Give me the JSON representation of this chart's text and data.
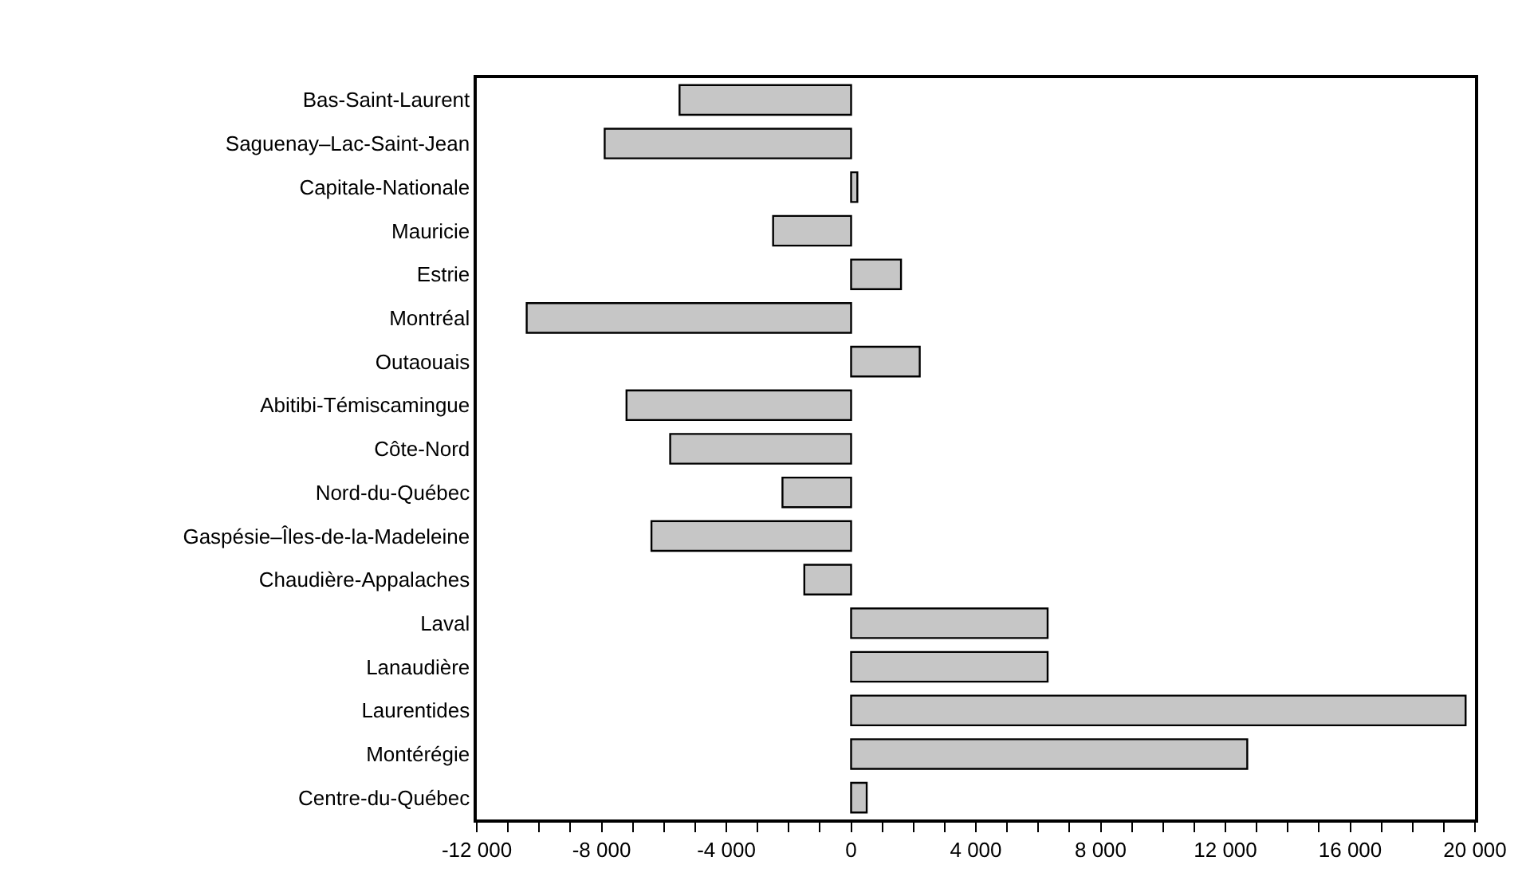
{
  "chart_data": {
    "type": "bar",
    "orientation": "horizontal",
    "categories": [
      "Bas-Saint-Laurent",
      "Saguenay–Lac-Saint-Jean",
      "Capitale-Nationale",
      "Mauricie",
      "Estrie",
      "Montréal",
      "Outaouais",
      "Abitibi-Témiscamingue",
      "Côte-Nord",
      "Nord-du-Québec",
      "Gaspésie–Îles-de-la-Madeleine",
      "Chaudière-Appalaches",
      "Laval",
      "Lanaudière",
      "Laurentides",
      "Montérégie",
      "Centre-du-Québec"
    ],
    "values": [
      -5500,
      -7900,
      200,
      -2500,
      1600,
      -10400,
      2200,
      -7200,
      -5800,
      -2200,
      -6400,
      -1500,
      6300,
      6300,
      19700,
      12700,
      500
    ],
    "color": "#c6c6c6",
    "xlim": [
      -12000,
      20000
    ],
    "xticks": [
      {
        "value": -12000,
        "label": "-12 000"
      },
      {
        "value": -11000,
        "label": null
      },
      {
        "value": -10000,
        "label": null
      },
      {
        "value": -9000,
        "label": null
      },
      {
        "value": -8000,
        "label": "-8 000"
      },
      {
        "value": -7000,
        "label": null
      },
      {
        "value": -6000,
        "label": null
      },
      {
        "value": -5000,
        "label": null
      },
      {
        "value": -4000,
        "label": "-4 000"
      },
      {
        "value": -3000,
        "label": null
      },
      {
        "value": -2000,
        "label": null
      },
      {
        "value": -1000,
        "label": null
      },
      0,
      {
        "value": 1000,
        "label": null
      },
      {
        "value": 2000,
        "label": null
      },
      {
        "value": 3000,
        "label": null
      },
      {
        "value": 4000,
        "label": "4 000"
      },
      {
        "value": 5000,
        "label": null
      },
      {
        "value": 6000,
        "label": null
      },
      {
        "value": 7000,
        "label": null
      },
      {
        "value": 8000,
        "label": "8 000"
      },
      {
        "value": 9000,
        "label": null
      },
      {
        "value": 10000,
        "label": null
      },
      {
        "value": 11000,
        "label": null
      },
      {
        "value": 12000,
        "label": "12 000"
      },
      {
        "value": 13000,
        "label": null
      },
      {
        "value": 14000,
        "label": null
      },
      {
        "value": 15000,
        "label": null
      },
      {
        "value": 16000,
        "label": "16 000"
      },
      {
        "value": 17000,
        "label": null
      },
      {
        "value": 18000,
        "label": null
      },
      {
        "value": 19000,
        "label": null
      },
      {
        "value": 20000,
        "label": "20 000"
      }
    ]
  }
}
